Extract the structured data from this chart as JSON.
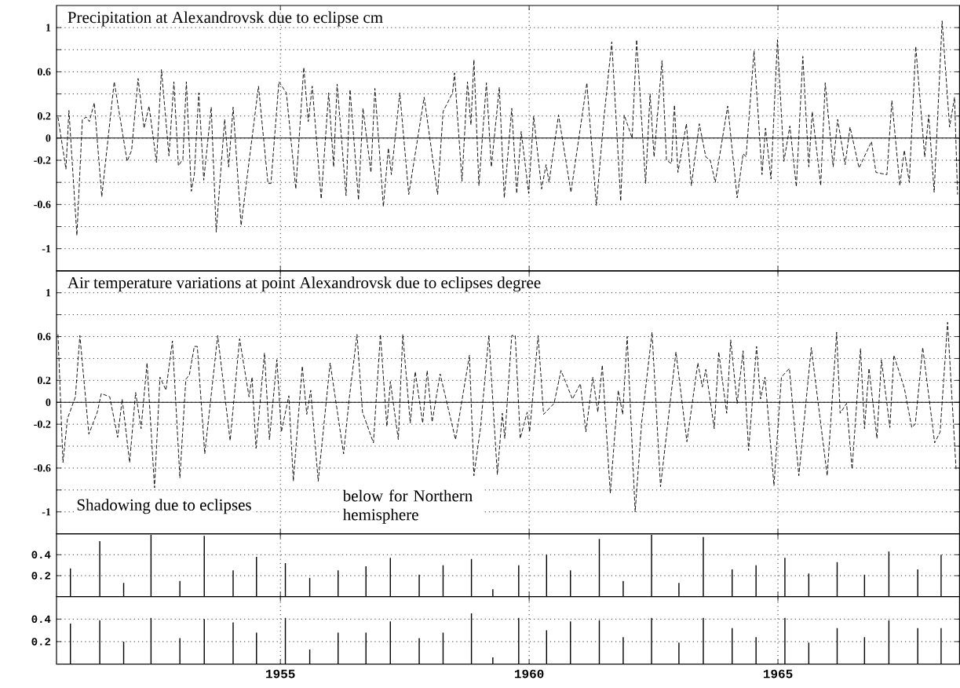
{
  "chart_data": [
    {
      "type": "line",
      "title": "Precipitation  at Alexandrovsk due to eclipse  cm",
      "color": "#000000",
      "line_style": "dashed",
      "grid": true,
      "tick_labels": "y",
      "xlim": [
        1950.5,
        1968.65
      ],
      "xticks": [
        1955,
        1960,
        1965
      ],
      "ylim": [
        -1.2,
        1.2
      ],
      "yticks": [
        -1,
        {
          "value": -0.8,
          "label": null
        },
        -0.6,
        {
          "value": -0.4,
          "label": null
        },
        -0.2,
        0,
        0.2,
        {
          "value": 0.4,
          "label": null
        },
        0.6,
        {
          "value": 0.8,
          "label": null
        },
        1
      ],
      "ref_lines": [
        {
          "axis": "y",
          "value": 0
        }
      ],
      "x": [
        1950.53,
        1950.69,
        1950.75,
        1950.91,
        1951.02,
        1951.1,
        1951.16,
        1951.26,
        1951.41,
        1951.66,
        1951.92,
        1952.01,
        1952.14,
        1952.26,
        1952.36,
        1952.51,
        1952.61,
        1952.76,
        1952.86,
        1952.95,
        1953.04,
        1953.11,
        1953.21,
        1953.27,
        1953.36,
        1953.46,
        1953.61,
        1953.71,
        1953.88,
        1953.96,
        1954.05,
        1954.21,
        1954.56,
        1954.75,
        1954.81,
        1954.97,
        1955.12,
        1955.31,
        1955.47,
        1955.56,
        1955.64,
        1955.82,
        1955.97,
        1956.07,
        1956.14,
        1956.32,
        1956.4,
        1956.57,
        1956.66,
        1956.82,
        1956.9,
        1957.07,
        1957.17,
        1957.23,
        1957.4,
        1957.58,
        1957.89,
        1958.16,
        1958.27,
        1958.46,
        1958.5,
        1958.65,
        1958.76,
        1958.83,
        1958.89,
        1958.99,
        1959.14,
        1959.24,
        1959.4,
        1959.5,
        1959.65,
        1959.75,
        1959.84,
        1959.99,
        1960.09,
        1960.25,
        1960.34,
        1960.4,
        1960.59,
        1960.84,
        1961.16,
        1961.35,
        1961.5,
        1961.66,
        1961.84,
        1961.91,
        1962.07,
        1962.16,
        1962.34,
        1962.43,
        1962.51,
        1962.67,
        1962.76,
        1962.86,
        1962.92,
        1962.99,
        1963.16,
        1963.26,
        1963.42,
        1963.55,
        1963.64,
        1963.74,
        1963.99,
        1964.18,
        1964.3,
        1964.36,
        1964.52,
        1964.68,
        1964.75,
        1964.86,
        1964.99,
        1965.12,
        1965.24,
        1965.37,
        1965.5,
        1965.62,
        1965.69,
        1965.86,
        1965.95,
        1966.11,
        1966.2,
        1966.35,
        1966.45,
        1966.63,
        1966.88,
        1966.97,
        1967.19,
        1967.29,
        1967.45,
        1967.54,
        1967.64,
        1967.77,
        1967.95,
        1968.03,
        1968.14,
        1968.3,
        1968.45,
        1968.55,
        1968.61
      ],
      "values": [
        0.19,
        -0.28,
        0.25,
        -0.88,
        0.17,
        0.19,
        0.15,
        0.32,
        -0.53,
        0.51,
        -0.21,
        -0.11,
        0.54,
        0.09,
        0.29,
        -0.22,
        0.62,
        -0.16,
        0.51,
        -0.25,
        -0.19,
        0.51,
        -0.48,
        -0.33,
        0.41,
        -0.38,
        0.28,
        -0.85,
        0.17,
        -0.26,
        0.28,
        -0.79,
        0.47,
        -0.41,
        -0.41,
        0.51,
        0.41,
        -0.46,
        0.64,
        0.15,
        0.47,
        -0.55,
        0.41,
        -0.26,
        0.49,
        -0.52,
        0.44,
        -0.56,
        0.27,
        -0.31,
        0.45,
        -0.62,
        -0.09,
        -0.33,
        0.41,
        -0.51,
        0.37,
        -0.51,
        0.24,
        0.41,
        0.59,
        -0.39,
        0.51,
        0.12,
        0.71,
        -0.43,
        0.5,
        -0.26,
        0.46,
        -0.54,
        0.27,
        -0.5,
        0.06,
        -0.5,
        0.2,
        -0.46,
        -0.24,
        -0.4,
        0.21,
        -0.49,
        0.5,
        -0.61,
        0.17,
        0.87,
        -0.57,
        0.21,
        0,
        0.89,
        -0.41,
        0.4,
        -0.17,
        0.7,
        -0.2,
        -0.23,
        0.3,
        -0.31,
        0.13,
        -0.43,
        0.13,
        -0.17,
        -0.2,
        -0.4,
        0.29,
        -0.54,
        -0.14,
        -0.17,
        0.79,
        -0.33,
        0.09,
        -0.37,
        0.89,
        -0.21,
        0.11,
        -0.44,
        0.74,
        -0.26,
        0.24,
        -0.43,
        0.5,
        -0.26,
        0.17,
        -0.24,
        0.1,
        -0.27,
        -0.03,
        -0.31,
        -0.33,
        0.34,
        -0.43,
        -0.11,
        -0.4,
        0.83,
        -0.17,
        0.21,
        -0.49,
        1.06,
        0.1,
        0.37,
        -0.51
      ]
    },
    {
      "type": "line",
      "title": "Air  temperature variations at point Alexandrovsk due to eclipses degree",
      "color": "#000000",
      "line_style": "dashed",
      "grid": true,
      "tick_labels": "y",
      "xlim": [
        1950.5,
        1968.65
      ],
      "xticks": [
        1955,
        1960,
        1965
      ],
      "ylim": [
        -1.2,
        1.2
      ],
      "yticks": [
        -1,
        {
          "value": -0.8,
          "label": null
        },
        -0.6,
        {
          "value": -0.4,
          "label": null
        },
        -0.2,
        0,
        0.2,
        {
          "value": 0.4,
          "label": null
        },
        0.6,
        {
          "value": 0.8,
          "label": null
        },
        1
      ],
      "ref_lines": [
        {
          "axis": "y",
          "value": 0
        }
      ],
      "annotations": [
        "Shadowing due to eclipses",
        "below for Northern hemisphere"
      ],
      "x": [
        1950.53,
        1950.63,
        1950.72,
        1950.88,
        1950.97,
        1951.15,
        1951.32,
        1951.4,
        1951.57,
        1951.73,
        1951.82,
        1951.97,
        1952.09,
        1952.2,
        1952.32,
        1952.47,
        1952.58,
        1952.7,
        1952.83,
        1952.98,
        1953.1,
        1953.17,
        1953.27,
        1953.33,
        1953.48,
        1953.74,
        1953.99,
        1954.18,
        1954.37,
        1954.43,
        1954.51,
        1954.68,
        1954.78,
        1954.93,
        1955.02,
        1955.17,
        1955.26,
        1955.44,
        1955.53,
        1955.61,
        1955.76,
        1956.0,
        1956.27,
        1956.38,
        1956.54,
        1956.65,
        1956.87,
        1957.01,
        1957.14,
        1957.21,
        1957.37,
        1957.46,
        1957.61,
        1957.71,
        1957.86,
        1957.95,
        1958.05,
        1958.21,
        1958.52,
        1958.8,
        1958.89,
        1959.02,
        1959.19,
        1959.36,
        1959.46,
        1959.51,
        1959.65,
        1959.72,
        1959.82,
        1959.96,
        1960.01,
        1960.18,
        1960.29,
        1960.5,
        1960.64,
        1960.87,
        1961.03,
        1961.14,
        1961.28,
        1961.38,
        1961.47,
        1961.63,
        1961.79,
        1961.88,
        1961.97,
        1962.13,
        1962.26,
        1962.47,
        1962.64,
        1962.95,
        1963.17,
        1963.39,
        1963.48,
        1963.55,
        1963.72,
        1963.81,
        1963.97,
        1964.05,
        1964.18,
        1964.3,
        1964.41,
        1964.57,
        1964.65,
        1964.74,
        1964.92,
        1965.07,
        1965.23,
        1965.42,
        1965.67,
        1965.99,
        1966.18,
        1966.25,
        1966.38,
        1966.49,
        1966.66,
        1966.74,
        1966.83,
        1966.99,
        1967.08,
        1967.25,
        1967.33,
        1967.54,
        1967.69,
        1967.76,
        1967.91,
        1968.15,
        1968.26,
        1968.41,
        1968.58
      ],
      "values": [
        0.62,
        -0.55,
        -0.15,
        0.05,
        0.61,
        -0.29,
        -0.09,
        0.08,
        0.05,
        -0.32,
        0.03,
        -0.55,
        0.09,
        -0.24,
        0.36,
        -0.78,
        0.23,
        0.11,
        0.56,
        -0.69,
        0.21,
        0.25,
        0.51,
        0.51,
        -0.47,
        0.61,
        -0.35,
        0.58,
        0.05,
        0.23,
        -0.42,
        0.45,
        -0.34,
        0.39,
        -0.27,
        0.06,
        -0.72,
        0.33,
        -0.11,
        0.11,
        -0.72,
        0.36,
        -0.47,
        0.02,
        0.62,
        -0.09,
        -0.37,
        0.62,
        -0.22,
        0.19,
        -0.34,
        0.62,
        -0.19,
        0.28,
        -0.19,
        0.29,
        -0.18,
        0.26,
        -0.34,
        0.43,
        -0.67,
        -0.24,
        0.61,
        -0.66,
        -0.1,
        -0.33,
        0.61,
        0.61,
        -0.33,
        -0.09,
        -0.27,
        0.61,
        -0.11,
        -0.01,
        0.29,
        0.03,
        0.17,
        -0.27,
        0.23,
        -0.09,
        0.34,
        -0.83,
        0.11,
        -0.11,
        0.6,
        -1.0,
        -0.19,
        0.64,
        -0.77,
        0.46,
        -0.36,
        0.36,
        0.14,
        0.3,
        -0.24,
        0.46,
        -0.1,
        0.57,
        -0.01,
        0.47,
        -0.44,
        0.51,
        0.03,
        0.23,
        -0.76,
        0.23,
        0.31,
        -0.67,
        0.5,
        -0.67,
        0.64,
        -0.1,
        -0.01,
        -0.61,
        0.49,
        -0.24,
        0.31,
        -0.33,
        0.39,
        -0.23,
        0.43,
        0.13,
        -0.23,
        -0.2,
        0.5,
        -0.37,
        -0.27,
        0.73,
        -0.61
      ]
    },
    {
      "type": "bar",
      "color": "#000000",
      "grid": true,
      "tick_labels": "y",
      "xlim": [
        1950.5,
        1968.65
      ],
      "xticks": [
        1955,
        1960,
        1965
      ],
      "ylim": [
        0,
        0.6
      ],
      "yticks": [
        0.2,
        0.4
      ],
      "x": [
        1950.78,
        1951.37,
        1951.85,
        1952.4,
        1952.98,
        1953.47,
        1954.05,
        1954.52,
        1955.1,
        1955.59,
        1956.16,
        1956.72,
        1957.21,
        1957.79,
        1958.27,
        1958.84,
        1959.27,
        1959.79,
        1960.35,
        1960.83,
        1961.41,
        1961.89,
        1962.46,
        1963.01,
        1963.5,
        1964.08,
        1964.56,
        1965.14,
        1965.62,
        1966.19,
        1966.74,
        1967.23,
        1967.81,
        1968.28
      ],
      "values": [
        0.27,
        0.53,
        0.13,
        0.59,
        0.15,
        0.58,
        0.25,
        0.38,
        0.32,
        0.18,
        0.25,
        0.29,
        0.37,
        0.21,
        0.3,
        0.36,
        0.07,
        0.3,
        0.4,
        0.25,
        0.55,
        0.15,
        0.59,
        0.13,
        0.57,
        0.26,
        0.3,
        0.37,
        0.22,
        0.33,
        0.21,
        0.43,
        0.26,
        0.4
      ]
    },
    {
      "type": "bar",
      "color": "#000000",
      "grid": true,
      "xlim": [
        1950.5,
        1968.65
      ],
      "xticks": [
        1955,
        1960,
        1965
      ],
      "ylim": [
        0,
        0.6
      ],
      "yticks": [
        0.2,
        0.4
      ],
      "x": [
        1950.78,
        1951.37,
        1951.85,
        1952.4,
        1952.98,
        1953.47,
        1954.05,
        1954.52,
        1955.1,
        1955.59,
        1956.16,
        1956.72,
        1957.21,
        1957.79,
        1958.27,
        1958.84,
        1959.27,
        1959.79,
        1960.35,
        1960.83,
        1961.41,
        1961.89,
        1962.46,
        1963.01,
        1963.5,
        1964.08,
        1964.56,
        1965.14,
        1965.62,
        1966.19,
        1966.74,
        1967.23,
        1967.81,
        1968.28
      ],
      "values": [
        0.36,
        0.39,
        0.2,
        0.41,
        0.23,
        0.4,
        0.37,
        0.28,
        0.41,
        0.13,
        0.28,
        0.28,
        0.38,
        0.23,
        0.28,
        0.45,
        0.06,
        0.41,
        0.3,
        0.38,
        0.39,
        0.24,
        0.41,
        0.19,
        0.41,
        0.32,
        0.24,
        0.41,
        0.19,
        0.32,
        0.24,
        0.39,
        0.32,
        0.32
      ]
    }
  ]
}
